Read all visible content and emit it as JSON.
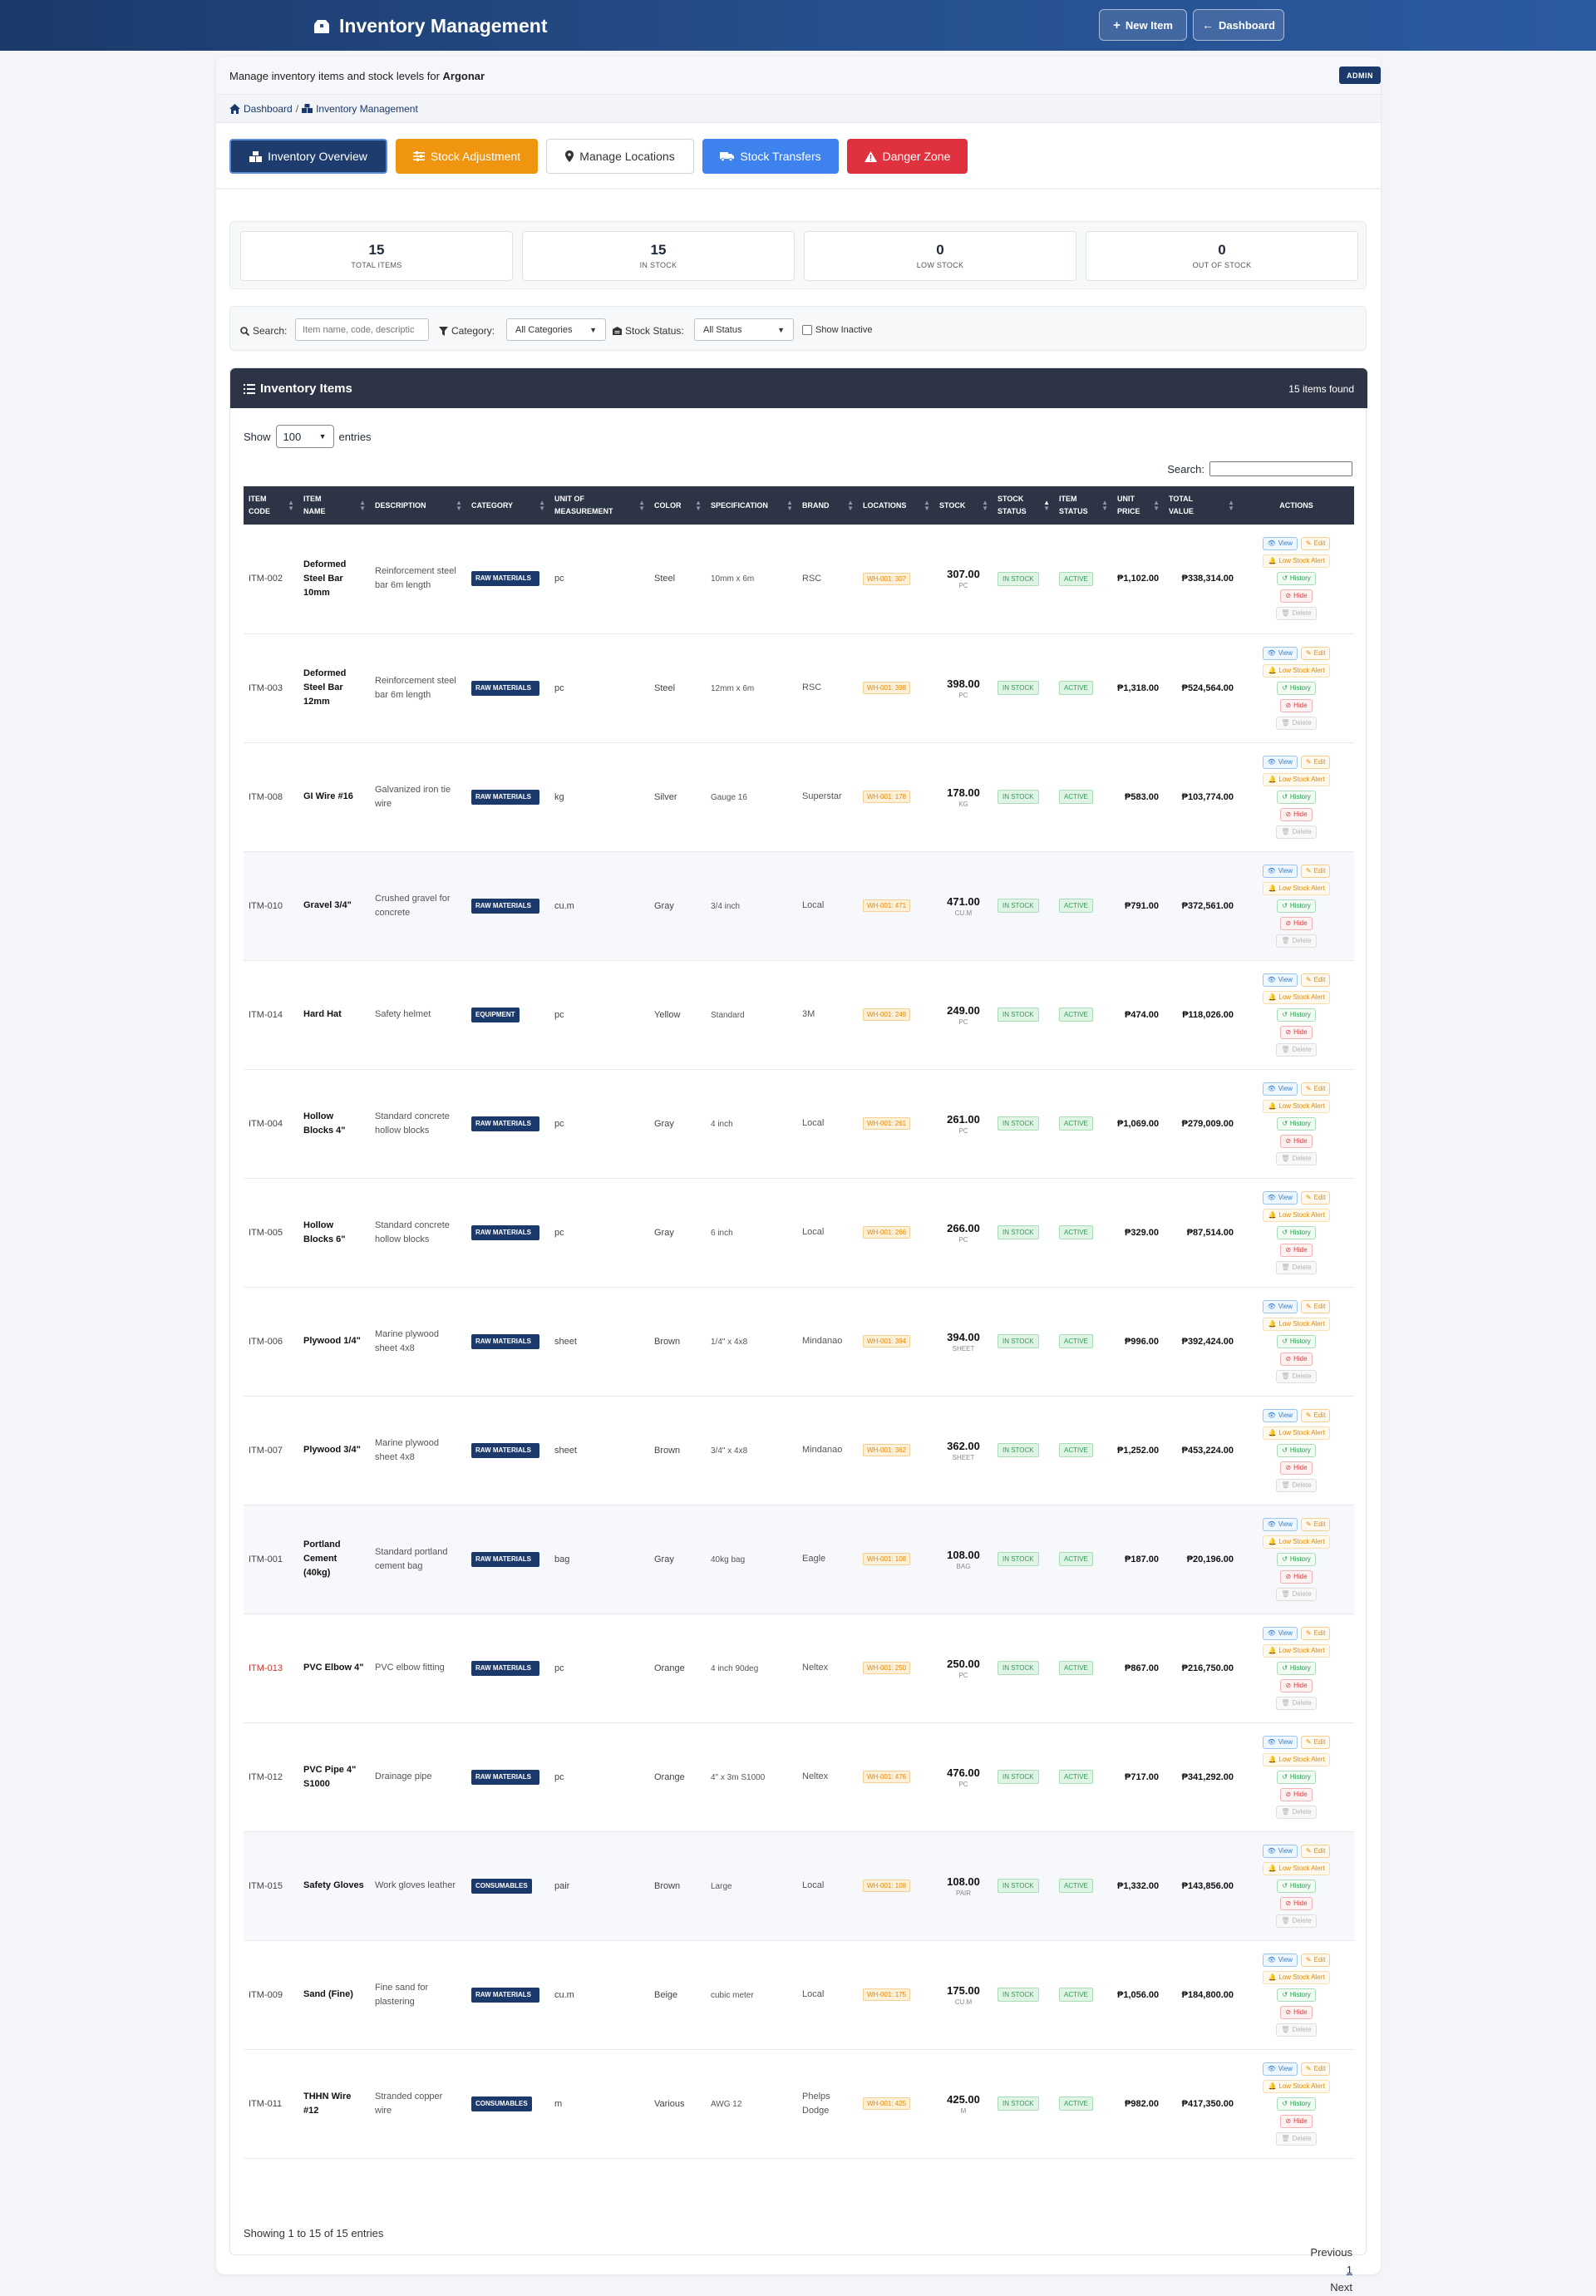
{
  "header": {
    "title": "Inventory Management",
    "new_item": "New Item",
    "dashboard": "Dashboard"
  },
  "subheader": {
    "desc_prefix": "Manage inventory items and stock levels for",
    "company": "Argonar",
    "badge": "ADMIN"
  },
  "breadcrumb": {
    "home": "Dashboard",
    "sep": "/",
    "current": "Inventory Management"
  },
  "tabs": [
    {
      "label": "Inventory Overview"
    },
    {
      "label": "Stock Adjustment"
    },
    {
      "label": "Manage Locations"
    },
    {
      "label": "Stock Transfers"
    },
    {
      "label": "Danger Zone"
    }
  ],
  "stats": [
    {
      "value": "15",
      "label": "TOTAL ITEMS"
    },
    {
      "value": "15",
      "label": "IN STOCK"
    },
    {
      "value": "0",
      "label": "LOW STOCK"
    },
    {
      "value": "0",
      "label": "OUT OF STOCK"
    }
  ],
  "filters": {
    "search_label": "Search:",
    "search_placeholder": "Item name, code, descriptic",
    "category_label": "Category:",
    "category_value": "All Categories",
    "status_label": "Stock Status:",
    "status_value": "All Status",
    "inactive_label": "Show Inactive"
  },
  "panel": {
    "title": "Inventory Items",
    "count": "15 items found",
    "show": "Show",
    "entries_value": "100",
    "entries": "entries",
    "search": "Search:"
  },
  "columns": [
    {
      "l1": "ITEM",
      "l2": "CODE"
    },
    {
      "l1": "ITEM",
      "l2": "NAME"
    },
    {
      "l1": "DESCRIPTION",
      "l2": ""
    },
    {
      "l1": "CATEGORY",
      "l2": ""
    },
    {
      "l1": "UNIT OF",
      "l2": "MEASUREMENT"
    },
    {
      "l1": "COLOR",
      "l2": ""
    },
    {
      "l1": "SPECIFICATION",
      "l2": ""
    },
    {
      "l1": "BRAND",
      "l2": ""
    },
    {
      "l1": "LOCATIONS",
      "l2": ""
    },
    {
      "l1": "STOCK",
      "l2": ""
    },
    {
      "l1": "STOCK",
      "l2": "STATUS"
    },
    {
      "l1": "ITEM",
      "l2": "STATUS"
    },
    {
      "l1": "UNIT",
      "l2": "PRICE"
    },
    {
      "l1": "TOTAL",
      "l2": "VALUE"
    },
    {
      "l1": "ACTIONS",
      "l2": ""
    }
  ],
  "actions": {
    "view": "View",
    "edit": "Edit",
    "alert": "Low Stock Alert",
    "history": "History",
    "hide": "Hide",
    "delete": "Delete"
  },
  "rows": [
    {
      "code": "ITM-002",
      "name": "Deformed Steel Bar 10mm",
      "desc": "Reinforcement steel bar 6m length",
      "category": "RAW MATERIALS",
      "uom": "pc",
      "color": "Steel",
      "spec": "10mm x 6m",
      "brand": "RSC",
      "loc": "WH-001: 307",
      "stock": "307.00",
      "unit": "PC",
      "stock_status": "IN STOCK",
      "item_status": "ACTIVE",
      "price": "₱1,102.00",
      "total": "₱338,314.00"
    },
    {
      "code": "ITM-003",
      "name": "Deformed Steel Bar 12mm",
      "desc": "Reinforcement steel bar 6m length",
      "category": "RAW MATERIALS",
      "uom": "pc",
      "color": "Steel",
      "spec": "12mm x 6m",
      "brand": "RSC",
      "loc": "WH-001: 398",
      "stock": "398.00",
      "unit": "PC",
      "stock_status": "IN STOCK",
      "item_status": "ACTIVE",
      "price": "₱1,318.00",
      "total": "₱524,564.00"
    },
    {
      "code": "ITM-008",
      "name": "GI Wire #16",
      "desc": "Galvanized iron tie wire",
      "category": "RAW MATERIALS",
      "uom": "kg",
      "color": "Silver",
      "spec": "Gauge 16",
      "brand": "Superstar",
      "loc": "WH-001: 178",
      "stock": "178.00",
      "unit": "KG",
      "stock_status": "IN STOCK",
      "item_status": "ACTIVE",
      "price": "₱583.00",
      "total": "₱103,774.00"
    },
    {
      "code": "ITM-010",
      "name": "Gravel 3/4\"",
      "desc": "Crushed gravel for concrete",
      "category": "RAW MATERIALS",
      "uom": "cu.m",
      "color": "Gray",
      "spec": "3/4 inch",
      "brand": "Local",
      "loc": "WH-001: 471",
      "stock": "471.00",
      "unit": "CU.M",
      "stock_status": "IN STOCK",
      "item_status": "ACTIVE",
      "price": "₱791.00",
      "total": "₱372,561.00"
    },
    {
      "code": "ITM-014",
      "name": "Hard Hat",
      "desc": "Safety helmet",
      "category": "EQUIPMENT",
      "uom": "pc",
      "color": "Yellow",
      "spec": "Standard",
      "brand": "3M",
      "loc": "WH-001: 249",
      "stock": "249.00",
      "unit": "PC",
      "stock_status": "IN STOCK",
      "item_status": "ACTIVE",
      "price": "₱474.00",
      "total": "₱118,026.00"
    },
    {
      "code": "ITM-004",
      "name": "Hollow Blocks 4\"",
      "desc": "Standard concrete hollow blocks",
      "category": "RAW MATERIALS",
      "uom": "pc",
      "color": "Gray",
      "spec": "4 inch",
      "brand": "Local",
      "loc": "WH-001: 261",
      "stock": "261.00",
      "unit": "PC",
      "stock_status": "IN STOCK",
      "item_status": "ACTIVE",
      "price": "₱1,069.00",
      "total": "₱279,009.00"
    },
    {
      "code": "ITM-005",
      "name": "Hollow Blocks 6\"",
      "desc": "Standard concrete hollow blocks",
      "category": "RAW MATERIALS",
      "uom": "pc",
      "color": "Gray",
      "spec": "6 inch",
      "brand": "Local",
      "loc": "WH-001: 266",
      "stock": "266.00",
      "unit": "PC",
      "stock_status": "IN STOCK",
      "item_status": "ACTIVE",
      "price": "₱329.00",
      "total": "₱87,514.00"
    },
    {
      "code": "ITM-006",
      "name": "Plywood 1/4\"",
      "desc": "Marine plywood sheet 4x8",
      "category": "RAW MATERIALS",
      "uom": "sheet",
      "color": "Brown",
      "spec": "1/4\" x 4x8",
      "brand": "Mindanao",
      "loc": "WH-001: 394",
      "stock": "394.00",
      "unit": "SHEET",
      "stock_status": "IN STOCK",
      "item_status": "ACTIVE",
      "price": "₱996.00",
      "total": "₱392,424.00"
    },
    {
      "code": "ITM-007",
      "name": "Plywood 3/4\"",
      "desc": "Marine plywood sheet 4x8",
      "category": "RAW MATERIALS",
      "uom": "sheet",
      "color": "Brown",
      "spec": "3/4\" x 4x8",
      "brand": "Mindanao",
      "loc": "WH-001: 362",
      "stock": "362.00",
      "unit": "SHEET",
      "stock_status": "IN STOCK",
      "item_status": "ACTIVE",
      "price": "₱1,252.00",
      "total": "₱453,224.00"
    },
    {
      "code": "ITM-001",
      "name": "Portland Cement (40kg)",
      "desc": "Standard portland cement bag",
      "category": "RAW MATERIALS",
      "uom": "bag",
      "color": "Gray",
      "spec": "40kg bag",
      "brand": "Eagle",
      "loc": "WH-001: 108",
      "stock": "108.00",
      "unit": "BAG",
      "stock_status": "IN STOCK",
      "item_status": "ACTIVE",
      "price": "₱187.00",
      "total": "₱20,196.00"
    },
    {
      "code": "ITM-013",
      "name": "PVC Elbow 4\"",
      "desc": "PVC elbow fitting",
      "category": "RAW MATERIALS",
      "uom": "pc",
      "color": "Orange",
      "spec": "4 inch 90deg",
      "brand": "Neltex",
      "loc": "WH-001: 250",
      "stock": "250.00",
      "unit": "PC",
      "stock_status": "IN STOCK",
      "item_status": "ACTIVE",
      "price": "₱867.00",
      "total": "₱216,750.00"
    },
    {
      "code": "ITM-012",
      "name": "PVC Pipe 4\" S1000",
      "desc": "Drainage pipe",
      "category": "RAW MATERIALS",
      "uom": "pc",
      "color": "Orange",
      "spec": "4\" x 3m S1000",
      "brand": "Neltex",
      "loc": "WH-001: 476",
      "stock": "476.00",
      "unit": "PC",
      "stock_status": "IN STOCK",
      "item_status": "ACTIVE",
      "price": "₱717.00",
      "total": "₱341,292.00"
    },
    {
      "code": "ITM-015",
      "name": "Safety Gloves",
      "desc": "Work gloves leather",
      "category": "CONSUMABLES",
      "uom": "pair",
      "color": "Brown",
      "spec": "Large",
      "brand": "Local",
      "loc": "WH-001: 108",
      "stock": "108.00",
      "unit": "PAIR",
      "stock_status": "IN STOCK",
      "item_status": "ACTIVE",
      "price": "₱1,332.00",
      "total": "₱143,856.00"
    },
    {
      "code": "ITM-009",
      "name": "Sand (Fine)",
      "desc": "Fine sand for plastering",
      "category": "RAW MATERIALS",
      "uom": "cu.m",
      "color": "Beige",
      "spec": "cubic meter",
      "brand": "Local",
      "loc": "WH-001: 175",
      "stock": "175.00",
      "unit": "CU.M",
      "stock_status": "IN STOCK",
      "item_status": "ACTIVE",
      "price": "₱1,056.00",
      "total": "₱184,800.00"
    },
    {
      "code": "ITM-011",
      "name": "THHN Wire #12",
      "desc": "Stranded copper wire",
      "category": "CONSUMABLES",
      "uom": "m",
      "color": "Various",
      "spec": "AWG 12",
      "brand": "Phelps Dodge",
      "loc": "WH-001: 425",
      "stock": "425.00",
      "unit": "M",
      "stock_status": "IN STOCK",
      "item_status": "ACTIVE",
      "price": "₱982.00",
      "total": "₱417,350.00"
    }
  ],
  "footer": {
    "info": "Showing 1 to 15 of 15 entries",
    "previous": "Previous",
    "page": "1",
    "next": "Next"
  }
}
